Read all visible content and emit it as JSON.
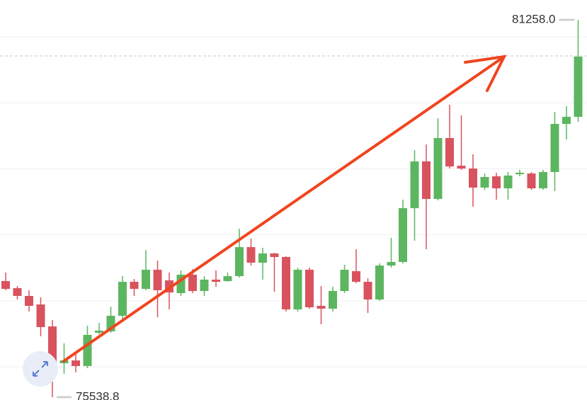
{
  "chart_data": {
    "type": "candlestick",
    "open": [
      77298,
      77191,
      77073,
      76944,
      76611,
      76053,
      76096,
      76011,
      76515,
      76536,
      76772,
      77287,
      77180,
      77470,
      77309,
      77116,
      77395,
      77148,
      77320,
      77298,
      77373,
      77813,
      77577,
      77717,
      77663,
      76869,
      77470,
      76923,
      76880,
      77148,
      77448,
      77287,
      77019,
      77534,
      77588,
      78403,
      79112,
      78543,
      79466,
      79047,
      79004,
      78715,
      78886,
      78704,
      78918,
      78929,
      78704,
      78951,
      79680,
      79788
    ],
    "high": [
      77427,
      77223,
      77159,
      77051,
      76708,
      76354,
      76193,
      76622,
      76665,
      76912,
      77373,
      77330,
      77770,
      77609,
      77427,
      77459,
      77481,
      77373,
      77459,
      77427,
      78092,
      77942,
      77803,
      77727,
      77674,
      77502,
      77502,
      77223,
      77212,
      77545,
      77781,
      77341,
      77566,
      77953,
      78532,
      79283,
      79369,
      79766,
      79970,
      79809,
      79219,
      78929,
      78940,
      78951,
      78983,
      78951,
      78983,
      79863,
      79948,
      81258.0
    ],
    "low": [
      77159,
      77019,
      76837,
      76461,
      75538.8,
      75893,
      75914,
      75978,
      76493,
      76515,
      76730,
      77073,
      77159,
      76751,
      76869,
      77073,
      77116,
      77073,
      77212,
      77287,
      77352,
      77534,
      77320,
      77137,
      76837,
      76837,
      76880,
      76644,
      76837,
      77116,
      77266,
      76815,
      76998,
      77502,
      77566,
      77910,
      77781,
      78521,
      79004,
      78983,
      78425,
      78682,
      78532,
      78532,
      78886,
      78682,
      78682,
      78661,
      79444,
      79712
    ],
    "close": [
      77180,
      77073,
      76923,
      76601,
      76053,
      76096,
      76011,
      76483,
      76547,
      76772,
      77287,
      77180,
      77470,
      77159,
      77126,
      77395,
      77148,
      77320,
      77287,
      77373,
      77813,
      77577,
      77717,
      77663,
      76869,
      77470,
      76901,
      76880,
      77148,
      77470,
      77287,
      77019,
      77534,
      77588,
      78403,
      79112,
      78543,
      79466,
      79036,
      79004,
      78715,
      78876,
      78704,
      78897,
      78940,
      78704,
      78951,
      79680,
      79788,
      80700
    ],
    "up_color": "#5cb660",
    "down_color": "#d9535f",
    "ylim": [
      75496,
      81558
    ],
    "gridlines": [
      76000,
      77000,
      78000,
      79000,
      80000,
      81000
    ],
    "price_line": 80710,
    "max_label": "81258.0",
    "min_label": "75538.8"
  }
}
